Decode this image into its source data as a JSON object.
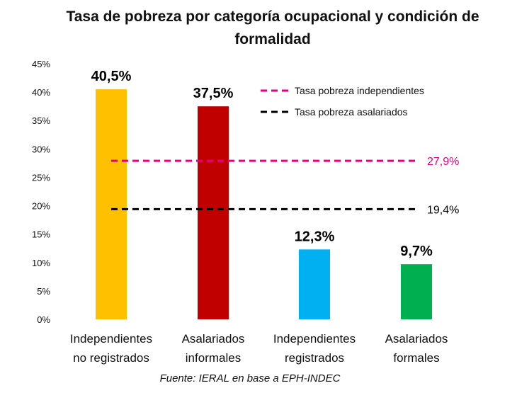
{
  "title_line1": "Tasa de pobreza por categoría ocupacional y condición de",
  "title_line2": "formalidad",
  "source": "Fuente: IERAL en base a EPH-INDEC",
  "chart_data": {
    "type": "bar",
    "title": "Tasa de pobreza por categoría ocupacional y condición de formalidad",
    "categories": [
      [
        "Independientes",
        "no registrados"
      ],
      [
        "Asalariados",
        "informales"
      ],
      [
        "Independientes",
        "registrados"
      ],
      [
        "Asalariados",
        "formales"
      ]
    ],
    "values": [
      40.5,
      37.5,
      12.3,
      9.7
    ],
    "value_labels": [
      "40,5%",
      "37,5%",
      "12,3%",
      "9,7%"
    ],
    "bar_colors": [
      "#FFC000",
      "#C00000",
      "#00B0F0",
      "#00B050"
    ],
    "ylim": [
      0,
      45
    ],
    "yticks": [
      0,
      5,
      10,
      15,
      20,
      25,
      30,
      35,
      40,
      45
    ],
    "ytick_labels": [
      "0%",
      "5%",
      "10%",
      "15%",
      "20%",
      "25%",
      "30%",
      "35%",
      "40%",
      "45%"
    ],
    "reference_lines": [
      {
        "name": "Tasa pobreza independientes",
        "value": 27.9,
        "label": "27,9%",
        "color": "#E6007E"
      },
      {
        "name": "Tasa pobreza asalariados",
        "value": 19.4,
        "label": "19,4%",
        "color": "#000000"
      }
    ],
    "legend_position": "top-right",
    "grid": false
  }
}
